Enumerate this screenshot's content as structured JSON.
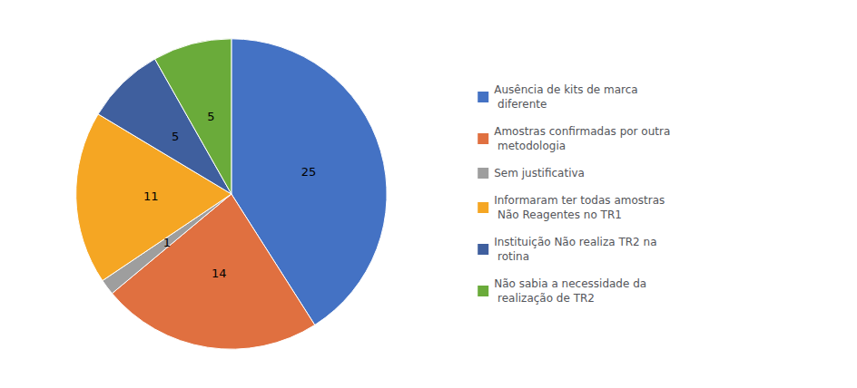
{
  "chart_data": {
    "type": "pie",
    "categories": [
      "Ausência de kits de marca\n diferente",
      "Amostras confirmadas por outra\n metodologia",
      "Sem justificativa",
      "Informaram ter todas amostras\n Não Reagentes no TR1",
      "Instituição Não realiza TR2 na\n rotina",
      "Não sabia a necessidade da\n realização de TR2"
    ],
    "values": [
      25,
      14,
      1,
      11,
      5,
      5
    ],
    "colors": [
      "#4472C4",
      "#E07040",
      "#9E9E9E",
      "#F5A623",
      "#3F5F9E",
      "#6AAB3A"
    ],
    "data_labels": true,
    "legend": "right"
  }
}
